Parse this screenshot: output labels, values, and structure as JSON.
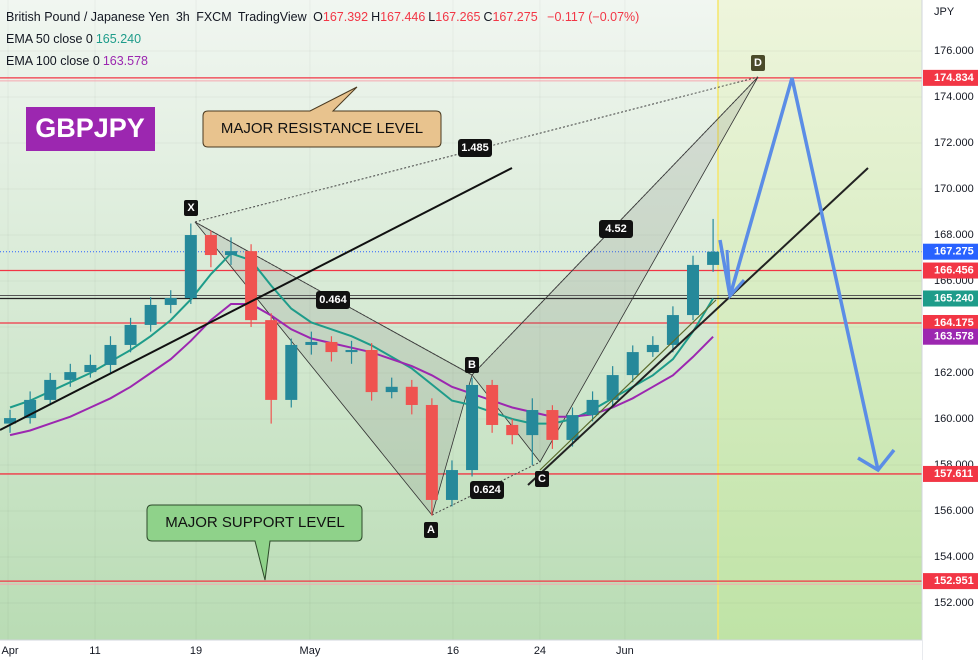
{
  "header": {
    "symbol": "British Pound / Japanese Yen",
    "interval": "3h",
    "exchange": "FXCM",
    "source": "TradingView",
    "ohlc": [
      {
        "label": "O",
        "value": "167.392"
      },
      {
        "label": "H",
        "value": "167.446"
      },
      {
        "label": "L",
        "value": "167.265"
      },
      {
        "label": "C",
        "value": "167.275"
      }
    ],
    "change": "−0.117 (−0.07%)"
  },
  "badge": "GBPJPY",
  "callouts": {
    "resistance": "MAJOR RESISTANCE LEVEL",
    "support": "MAJOR SUPPORT LEVEL"
  },
  "pattern": {
    "points": [
      "X",
      "A",
      "B",
      "C",
      "D"
    ],
    "ratios": [
      0.464,
      1.485,
      0.624,
      4.52
    ]
  },
  "chart_data": {
    "type": "candlestick",
    "currency": "JPY",
    "xlim": [
      -0.5,
      45.4
    ],
    "xticks": [
      {
        "value": -0.1,
        "label": "Apr"
      },
      {
        "value": 4.23,
        "label": "11"
      },
      {
        "value": 9.26,
        "label": "19"
      },
      {
        "value": 14.93,
        "label": "May"
      },
      {
        "value": 22.05,
        "label": "16"
      },
      {
        "value": 26.38,
        "label": "24"
      },
      {
        "value": 30.61,
        "label": "Jun"
      }
    ],
    "ylim": [
      150.39,
      178.22
    ],
    "yticks": [
      {
        "value": 152,
        "label": "152.000"
      },
      {
        "value": 154,
        "label": "154.000"
      },
      {
        "value": 156,
        "label": "156.000"
      },
      {
        "value": 158,
        "label": "158.000"
      },
      {
        "value": 160,
        "label": "160.000"
      },
      {
        "value": 162,
        "label": "162.000"
      },
      {
        "value": 164,
        "label": "164.000"
      },
      {
        "value": 166,
        "label": "166.000"
      },
      {
        "value": 168,
        "label": "168.000"
      },
      {
        "value": 170,
        "label": "170.000"
      },
      {
        "value": 172,
        "label": "172.000"
      },
      {
        "value": 174,
        "label": "174.000"
      },
      {
        "value": 176,
        "label": "176.000"
      }
    ],
    "up_color": "#26899a",
    "down_color": "#ef5350",
    "open": [
      159.8,
      160.04,
      160.83,
      161.7,
      162.04,
      162.35,
      163.22,
      164.09,
      164.96,
      165.26,
      168.0,
      167.13,
      167.3,
      164.3,
      160.83,
      163.22,
      163.35,
      162.91,
      163.0,
      161.17,
      161.4,
      160.61,
      156.48,
      157.78,
      161.48,
      159.74,
      159.3,
      160.39,
      159.09,
      160.17,
      160.83,
      161.91,
      162.91,
      163.22,
      164.52,
      166.7
    ],
    "high": [
      160.4,
      161.2,
      162.0,
      162.4,
      162.8,
      163.6,
      164.4,
      165.3,
      165.6,
      168.5,
      168.2,
      167.9,
      167.6,
      164.6,
      163.5,
      163.8,
      163.6,
      163.4,
      163.3,
      161.8,
      161.7,
      160.9,
      158.2,
      161.8,
      161.7,
      160.0,
      160.9,
      160.6,
      160.5,
      161.2,
      162.3,
      163.2,
      163.6,
      164.9,
      167.1,
      168.7
    ],
    "low": [
      159.4,
      159.8,
      160.6,
      161.4,
      161.8,
      162.0,
      162.9,
      163.8,
      164.6,
      165.0,
      166.6,
      166.7,
      164.0,
      159.8,
      160.5,
      162.8,
      162.5,
      162.4,
      160.8,
      160.9,
      160.2,
      155.8,
      156.2,
      157.5,
      159.4,
      158.9,
      158.0,
      158.7,
      158.8,
      159.9,
      160.5,
      161.6,
      162.7,
      162.9,
      164.3,
      166.4
    ],
    "close": [
      160.04,
      160.83,
      161.7,
      162.04,
      162.35,
      163.22,
      164.09,
      164.96,
      165.26,
      168.0,
      167.13,
      167.3,
      164.3,
      160.83,
      163.22,
      163.35,
      162.91,
      163.0,
      161.17,
      161.4,
      160.61,
      156.48,
      157.78,
      161.48,
      159.74,
      159.3,
      160.39,
      159.09,
      160.17,
      160.83,
      161.91,
      162.91,
      163.22,
      164.52,
      166.7,
      167.275
    ],
    "series": [
      {
        "name": "EMA 50 close 0",
        "color": "#1e9c8a",
        "last_label": "165.240",
        "values": [
          160.5,
          160.8,
          161.2,
          161.6,
          162.0,
          162.5,
          163.0,
          163.6,
          164.3,
          165.2,
          166.3,
          167.2,
          166.9,
          165.8,
          164.8,
          164.2,
          163.9,
          163.6,
          163.2,
          162.7,
          162.2,
          161.5,
          160.8,
          160.6,
          160.3,
          160.0,
          159.8,
          159.8,
          160.0,
          160.4,
          160.9,
          161.4,
          161.9,
          162.6,
          163.8,
          165.24
        ]
      },
      {
        "name": "EMA 100 close 0",
        "color": "#9c27b0",
        "last_label": "163.578",
        "values": [
          159.3,
          159.5,
          159.8,
          160.1,
          160.5,
          160.9,
          161.4,
          162.0,
          162.6,
          163.4,
          164.3,
          165.0,
          165.0,
          164.5,
          163.9,
          163.5,
          163.3,
          163.1,
          162.9,
          162.6,
          162.3,
          161.9,
          161.4,
          161.1,
          160.8,
          160.5,
          160.3,
          160.1,
          160.1,
          160.2,
          160.5,
          160.9,
          161.4,
          161.9,
          162.7,
          163.578
        ]
      }
    ],
    "price_markers": [
      {
        "value": 174.834,
        "label": "174.834",
        "color": "#f23645",
        "line_color": "#f23645"
      },
      {
        "value": 167.275,
        "label": "167.275",
        "color": "#2962ff",
        "line_color": "#2962ff"
      },
      {
        "value": 166.456,
        "label": "166.456",
        "color": "#f23645",
        "line_color": "#f23645"
      },
      {
        "value": 165.24,
        "label": "165.240",
        "color": "#1e9c8a",
        "line_color": "#222222"
      },
      {
        "value": 164.175,
        "label": "164.175",
        "color": "#f23645",
        "line_color": "#f23645"
      },
      {
        "value": 163.578,
        "label": "163.578",
        "color": "#9c27b0",
        "line_color": null
      },
      {
        "value": 157.611,
        "label": "157.611",
        "color": "#f23645",
        "line_color": "#f23645"
      },
      {
        "value": 152.951,
        "label": "152.951",
        "color": "#f23645",
        "line_color": "#f23645"
      }
    ]
  }
}
